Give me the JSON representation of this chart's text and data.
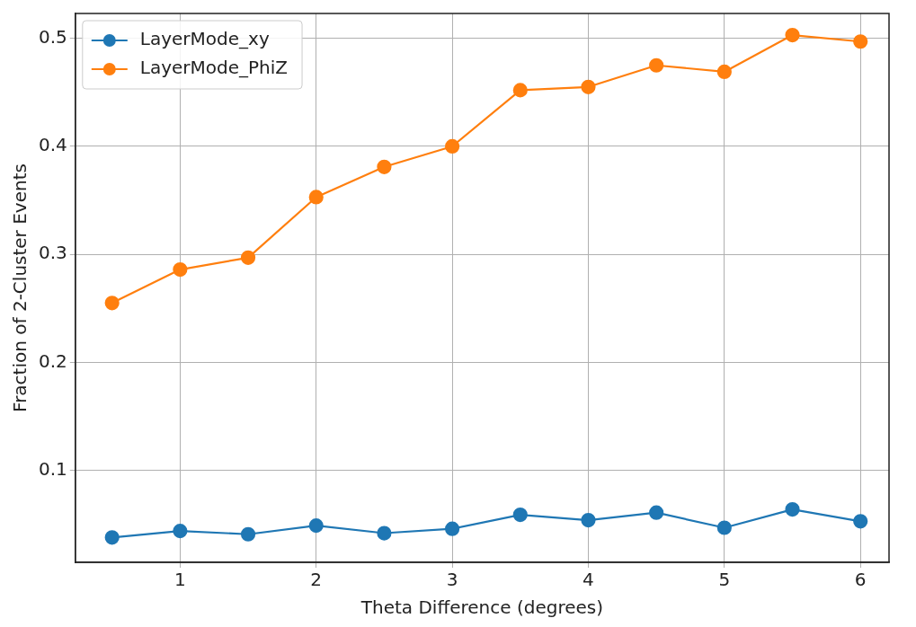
{
  "chart_data": {
    "type": "line",
    "xlabel": "Theta Difference (degrees)",
    "ylabel": "Fraction of 2-Cluster Events",
    "x": [
      0.5,
      1,
      1.5,
      2,
      2.5,
      3,
      3.5,
      4,
      4.5,
      5,
      5.5,
      6
    ],
    "series": [
      {
        "name": "LayerMode_xy",
        "color": "#1f77b4",
        "values": [
          0.038,
          0.044,
          0.041,
          0.049,
          0.042,
          0.046,
          0.059,
          0.054,
          0.061,
          0.047,
          0.064,
          0.053
        ]
      },
      {
        "name": "LayerMode_PhiZ",
        "color": "#ff7f0e",
        "values": [
          0.255,
          0.286,
          0.297,
          0.353,
          0.381,
          0.4,
          0.452,
          0.455,
          0.475,
          0.469,
          0.503,
          0.497
        ]
      }
    ],
    "xlim": [
      0.23,
      6.21
    ],
    "xticks": [
      1,
      2,
      3,
      4,
      5,
      6
    ],
    "ylim": [
      0.015,
      0.523
    ],
    "yticks": [
      0.1,
      0.2,
      0.3,
      0.4,
      0.5
    ],
    "grid": true,
    "legend": "top left",
    "marker": "circle",
    "line_style": "solid"
  }
}
